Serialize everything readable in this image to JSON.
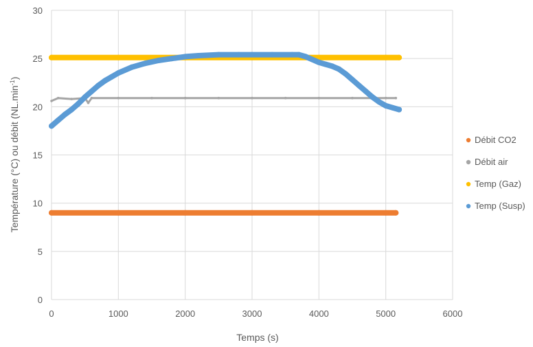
{
  "chart_data": {
    "type": "scatter",
    "title": "",
    "xlabel": "Temps (s)",
    "ylabel_main": "Température (°C) ou débit (NL.min",
    "ylabel_sup": "-1",
    "ylabel_close": ")",
    "xlim": [
      0,
      6000
    ],
    "ylim": [
      0,
      30
    ],
    "xticks": [
      0,
      1000,
      2000,
      3000,
      4000,
      5000,
      6000
    ],
    "yticks": [
      0,
      5,
      10,
      15,
      20,
      25,
      30
    ],
    "xtick_labels": [
      "0",
      "1000",
      "2000",
      "3000",
      "4000",
      "5000",
      "6000"
    ],
    "ytick_labels": [
      "0",
      "5",
      "10",
      "15",
      "20",
      "25",
      "30"
    ],
    "grid": true,
    "legend_position": "right",
    "series": [
      {
        "name": "Débit CO2",
        "color": "#ED7D31",
        "style": "thick",
        "x": [
          0,
          1000,
          2000,
          3000,
          4000,
          5000,
          5150
        ],
        "y": [
          9.0,
          9.0,
          9.0,
          9.0,
          9.0,
          9.0,
          9.0
        ]
      },
      {
        "name": "Débit air",
        "color": "#A5A5A5",
        "style": "thin",
        "x": [
          0,
          100,
          300,
          500,
          550,
          600,
          1000,
          1500,
          2000,
          2500,
          3000,
          3500,
          4000,
          4500,
          5000,
          5150
        ],
        "y": [
          20.6,
          20.9,
          20.8,
          20.9,
          20.4,
          20.9,
          20.9,
          20.9,
          20.9,
          20.9,
          20.9,
          20.9,
          20.9,
          20.9,
          20.9,
          20.9
        ]
      },
      {
        "name": "Temp (Gaz)",
        "color": "#FFC000",
        "style": "thick",
        "x": [
          0,
          1000,
          2000,
          3000,
          4000,
          5000,
          5200
        ],
        "y": [
          25.1,
          25.1,
          25.1,
          25.1,
          25.1,
          25.1,
          25.1
        ]
      },
      {
        "name": "Temp (Susp)",
        "color": "#5B9BD5",
        "style": "thick",
        "x": [
          0,
          100,
          200,
          300,
          400,
          500,
          600,
          700,
          800,
          900,
          1000,
          1200,
          1400,
          1600,
          1800,
          2000,
          2200,
          2500,
          2800,
          3000,
          3300,
          3600,
          3700,
          3800,
          3900,
          4000,
          4100,
          4200,
          4300,
          4400,
          4500,
          4600,
          4700,
          4800,
          4900,
          5000,
          5100,
          5200
        ],
        "y": [
          18.0,
          18.6,
          19.2,
          19.7,
          20.3,
          21.0,
          21.6,
          22.2,
          22.7,
          23.1,
          23.5,
          24.1,
          24.5,
          24.8,
          25.0,
          25.2,
          25.3,
          25.4,
          25.4,
          25.4,
          25.4,
          25.4,
          25.4,
          25.2,
          24.9,
          24.6,
          24.4,
          24.2,
          23.9,
          23.4,
          22.8,
          22.2,
          21.6,
          21.0,
          20.5,
          20.1,
          19.9,
          19.7
        ]
      }
    ]
  }
}
